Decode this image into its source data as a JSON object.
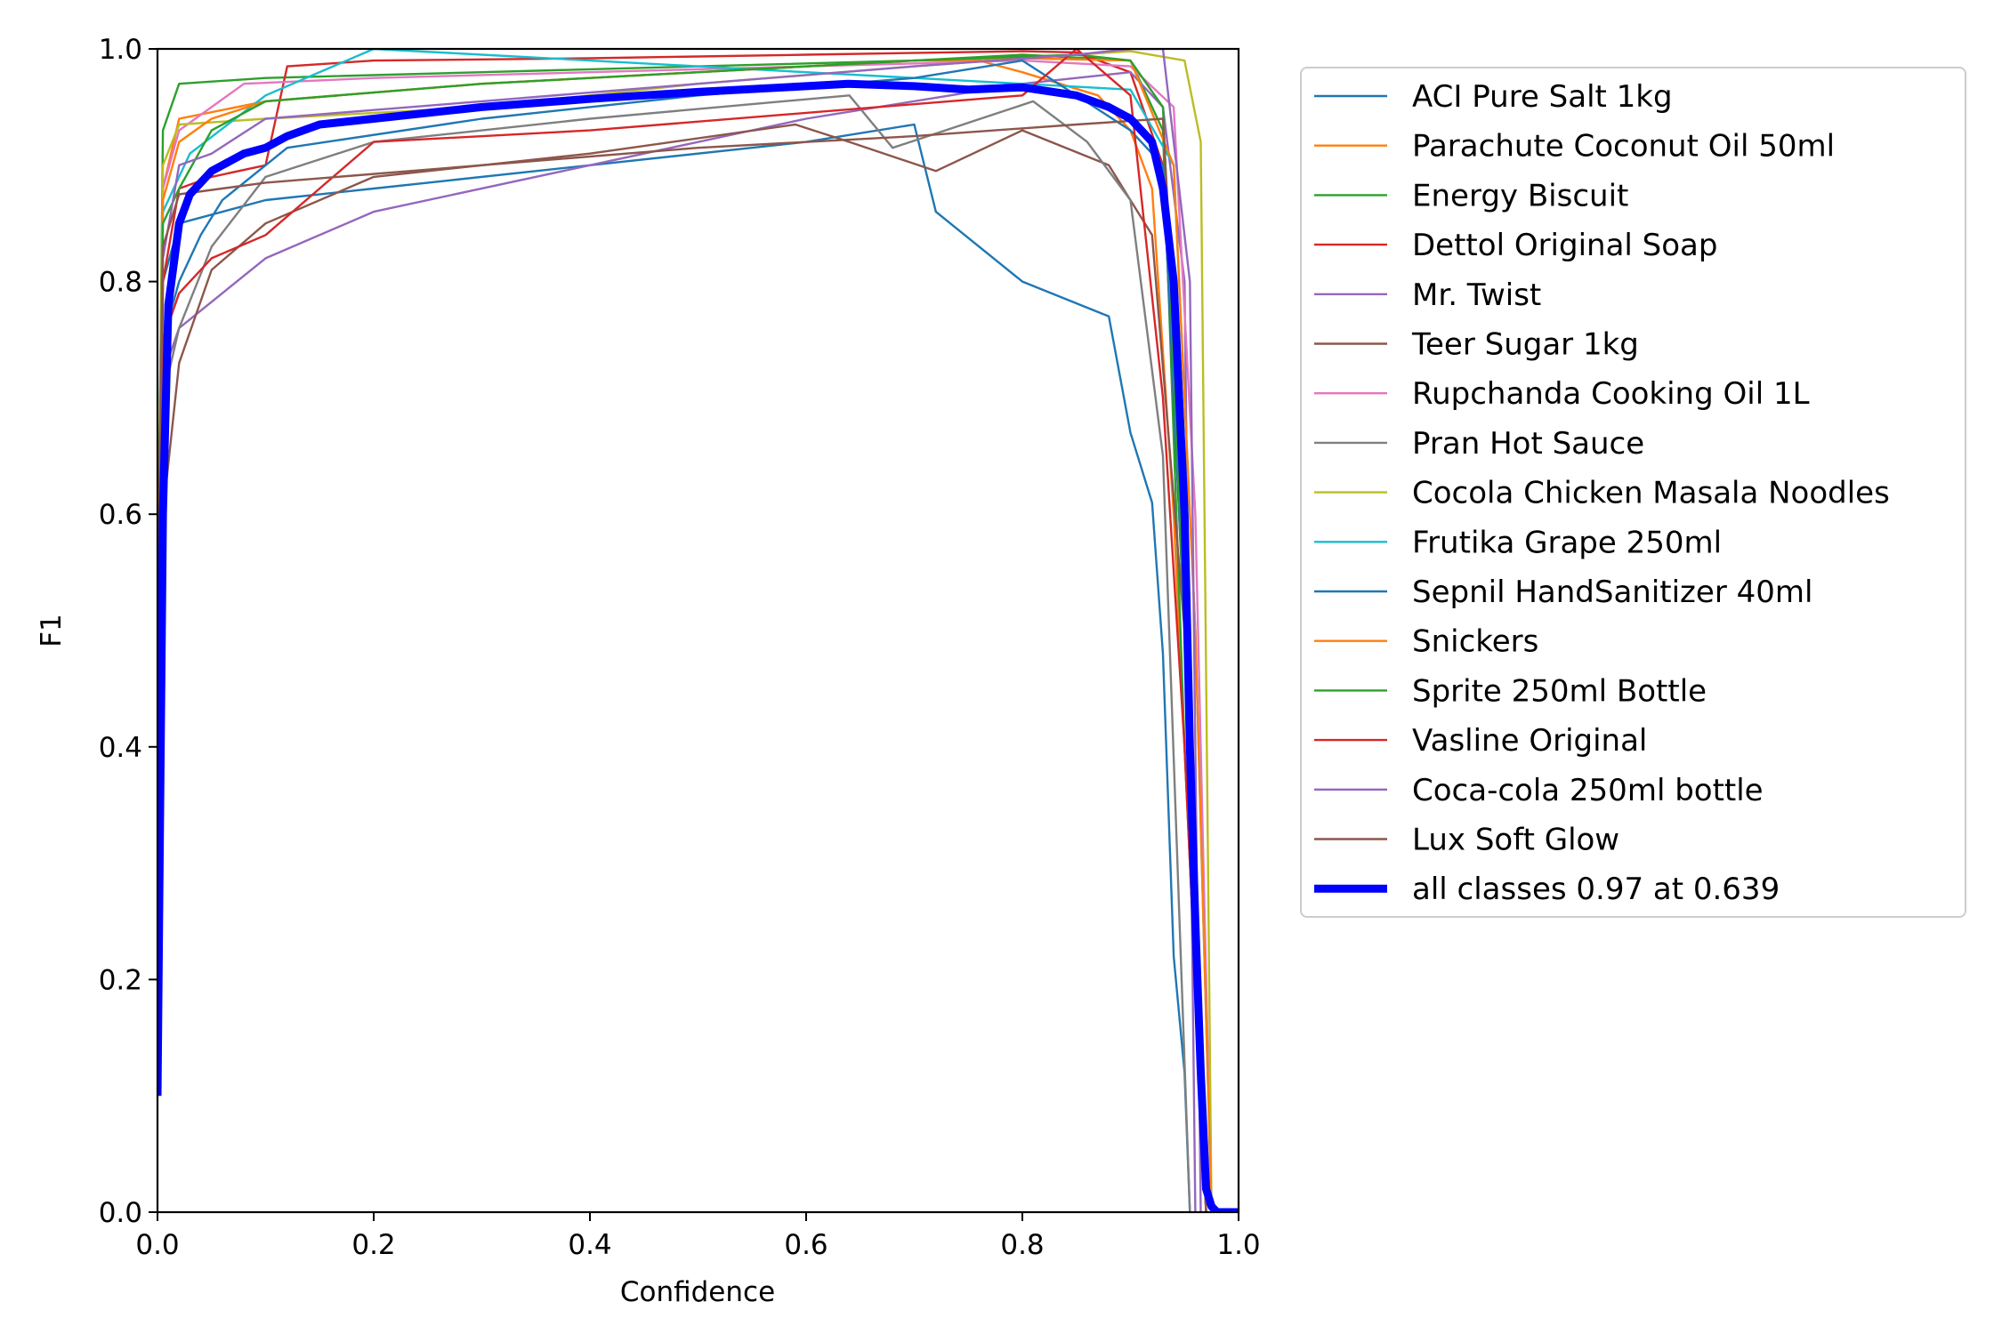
{
  "chart_data": {
    "type": "line",
    "title": "",
    "xlabel": "Confidence",
    "ylabel": "F1",
    "xlim": [
      0,
      1
    ],
    "ylim": [
      0,
      1
    ],
    "x_ticks": [
      "0.0",
      "0.2",
      "0.4",
      "0.6",
      "0.8",
      "1.0"
    ],
    "y_ticks": [
      "0.0",
      "0.2",
      "0.4",
      "0.6",
      "0.8",
      "1.0"
    ],
    "grid": false,
    "legend_position": "outside-right-top",
    "series": [
      {
        "name": "ACI Pure Salt 1kg",
        "color": "#1f77b4",
        "x": [
          0,
          0.005,
          0.02,
          0.1,
          0.2,
          0.4,
          0.6,
          0.7,
          0.72,
          0.8,
          0.88,
          0.9,
          0.92,
          0.93,
          0.94,
          0.95,
          0.955
        ],
        "y": [
          0.3,
          0.8,
          0.85,
          0.87,
          0.88,
          0.9,
          0.92,
          0.935,
          0.86,
          0.8,
          0.77,
          0.67,
          0.61,
          0.48,
          0.22,
          0.12,
          0
        ]
      },
      {
        "name": "Parachute Coconut Oil 50ml",
        "color": "#ff7f0e",
        "x": [
          0,
          0.005,
          0.02,
          0.1,
          0.3,
          0.5,
          0.7,
          0.76,
          0.8,
          0.87,
          0.9,
          0.92,
          0.94,
          0.96,
          0.97
        ],
        "y": [
          0.4,
          0.88,
          0.94,
          0.955,
          0.97,
          0.98,
          0.99,
          0.99,
          0.98,
          0.96,
          0.93,
          0.88,
          0.6,
          0.2,
          0
        ]
      },
      {
        "name": "Energy Biscuit",
        "color": "#2ca02c",
        "x": [
          0,
          0.005,
          0.02,
          0.1,
          0.3,
          0.5,
          0.7,
          0.8,
          0.9,
          0.93,
          0.95,
          0.97
        ],
        "y": [
          0.5,
          0.93,
          0.97,
          0.975,
          0.98,
          0.985,
          0.99,
          0.995,
          0.99,
          0.93,
          0.4,
          0
        ]
      },
      {
        "name": "Dettol Original Soap",
        "color": "#d62728",
        "x": [
          0,
          0.005,
          0.02,
          0.05,
          0.1,
          0.12,
          0.2,
          0.4,
          0.6,
          0.8,
          0.85,
          0.9,
          0.93,
          0.95,
          0.97
        ],
        "y": [
          0.4,
          0.8,
          0.88,
          0.89,
          0.9,
          0.985,
          0.99,
          0.992,
          0.995,
          0.998,
          0.997,
          0.98,
          0.9,
          0.5,
          0
        ]
      },
      {
        "name": "Mr. Twist",
        "color": "#9467bd",
        "x": [
          0,
          0.005,
          0.02,
          0.1,
          0.2,
          0.4,
          0.6,
          0.8,
          0.9,
          0.93,
          0.95,
          0.96
        ],
        "y": [
          0.5,
          0.72,
          0.76,
          0.82,
          0.86,
          0.9,
          0.94,
          0.97,
          0.98,
          0.95,
          0.8,
          0
        ]
      },
      {
        "name": "Teer Sugar 1kg",
        "color": "#8c564b",
        "x": [
          0,
          0.005,
          0.02,
          0.05,
          0.1,
          0.2,
          0.4,
          0.59,
          0.64,
          0.72,
          0.8,
          0.88,
          0.92,
          0.95,
          0.97
        ],
        "y": [
          0.3,
          0.6,
          0.73,
          0.81,
          0.85,
          0.89,
          0.91,
          0.935,
          0.92,
          0.895,
          0.93,
          0.9,
          0.84,
          0.5,
          0
        ]
      },
      {
        "name": "Rupchanda Cooking Oil 1L",
        "color": "#e377c2",
        "x": [
          0,
          0.005,
          0.02,
          0.08,
          0.2,
          0.4,
          0.6,
          0.8,
          0.9,
          0.94,
          0.96,
          0.975
        ],
        "y": [
          0.5,
          0.88,
          0.93,
          0.97,
          0.975,
          0.98,
          0.985,
          0.99,
          0.985,
          0.95,
          0.6,
          0
        ]
      },
      {
        "name": "Pran Hot Sauce",
        "color": "#7f7f7f",
        "x": [
          0,
          0.005,
          0.02,
          0.05,
          0.1,
          0.2,
          0.4,
          0.64,
          0.68,
          0.81,
          0.86,
          0.9,
          0.93,
          0.955
        ],
        "y": [
          0.4,
          0.7,
          0.76,
          0.83,
          0.89,
          0.92,
          0.94,
          0.96,
          0.915,
          0.955,
          0.92,
          0.87,
          0.65,
          0
        ]
      },
      {
        "name": "Cocola Chicken Masala Noodles",
        "color": "#bcbd22",
        "x": [
          0,
          0.005,
          0.02,
          0.1,
          0.3,
          0.5,
          0.7,
          0.85,
          0.9,
          0.95,
          0.965,
          0.975
        ],
        "y": [
          0.5,
          0.9,
          0.935,
          0.94,
          0.95,
          0.97,
          0.985,
          0.995,
          0.998,
          0.99,
          0.92,
          0
        ]
      },
      {
        "name": "Frutika Grape 250ml",
        "color": "#17becf",
        "x": [
          0,
          0.005,
          0.03,
          0.1,
          0.2,
          0.3,
          0.5,
          0.6,
          0.7,
          0.8,
          0.9,
          0.94,
          0.96,
          0.975
        ],
        "y": [
          0.5,
          0.86,
          0.91,
          0.96,
          1.0,
          0.995,
          0.985,
          0.98,
          0.975,
          0.97,
          0.965,
          0.9,
          0.5,
          0
        ]
      },
      {
        "name": "Sepnil HandSanitizer 40ml",
        "color": "#1f77b4",
        "x": [
          0,
          0.005,
          0.02,
          0.04,
          0.06,
          0.1,
          0.12,
          0.3,
          0.5,
          0.7,
          0.8,
          0.85,
          0.9,
          0.93,
          0.95,
          0.97
        ],
        "y": [
          0.4,
          0.75,
          0.8,
          0.84,
          0.87,
          0.9,
          0.915,
          0.94,
          0.96,
          0.975,
          0.99,
          0.96,
          0.93,
          0.9,
          0.5,
          0
        ]
      },
      {
        "name": "Snickers",
        "color": "#ff7f0e",
        "x": [
          0,
          0.005,
          0.02,
          0.05,
          0.1,
          0.3,
          0.5,
          0.7,
          0.8,
          0.9,
          0.94,
          0.96,
          0.975
        ],
        "y": [
          0.5,
          0.87,
          0.92,
          0.94,
          0.955,
          0.97,
          0.98,
          0.99,
          0.992,
          0.99,
          0.9,
          0.5,
          0
        ]
      },
      {
        "name": "Sprite 250ml Bottle",
        "color": "#2ca02c",
        "x": [
          0,
          0.005,
          0.02,
          0.05,
          0.1,
          0.3,
          0.5,
          0.7,
          0.85,
          0.9,
          0.93,
          0.95,
          0.97
        ],
        "y": [
          0.5,
          0.85,
          0.88,
          0.93,
          0.955,
          0.97,
          0.98,
          0.99,
          0.995,
          0.99,
          0.95,
          0.5,
          0
        ]
      },
      {
        "name": "Vasline Original",
        "color": "#d62728",
        "x": [
          0,
          0.005,
          0.02,
          0.05,
          0.1,
          0.2,
          0.4,
          0.6,
          0.8,
          0.85,
          0.9,
          0.93,
          0.95,
          0.97
        ],
        "y": [
          0.4,
          0.75,
          0.79,
          0.82,
          0.84,
          0.92,
          0.93,
          0.945,
          0.96,
          1.0,
          0.96,
          0.7,
          0.4,
          0
        ]
      },
      {
        "name": "Coca-cola 250ml bottle",
        "color": "#9467bd",
        "x": [
          0,
          0.005,
          0.02,
          0.05,
          0.1,
          0.3,
          0.5,
          0.7,
          0.85,
          0.9,
          0.93,
          0.955,
          0.965
        ],
        "y": [
          0.5,
          0.82,
          0.9,
          0.91,
          0.94,
          0.955,
          0.97,
          0.985,
          0.995,
          1.0,
          1.0,
          0.8,
          0
        ]
      },
      {
        "name": "Lux Soft Glow",
        "color": "#8c564b",
        "x": [
          0,
          0.005,
          0.02,
          0.1,
          0.3,
          0.5,
          0.7,
          0.85,
          0.93,
          0.95,
          0.97
        ],
        "y": [
          0.5,
          0.83,
          0.875,
          0.885,
          0.9,
          0.915,
          0.925,
          0.935,
          0.94,
          0.6,
          0
        ]
      },
      {
        "name": "all classes 0.97 at 0.639",
        "color": "#0000ff",
        "bold": true,
        "x": [
          0,
          0.002,
          0.005,
          0.01,
          0.02,
          0.03,
          0.05,
          0.08,
          0.1,
          0.12,
          0.15,
          0.2,
          0.3,
          0.4,
          0.5,
          0.6,
          0.639,
          0.7,
          0.75,
          0.8,
          0.85,
          0.88,
          0.9,
          0.92,
          0.93,
          0.94,
          0.95,
          0.955,
          0.96,
          0.965,
          0.97,
          0.975,
          0.98,
          1.0
        ],
        "y": [
          0.1,
          0.3,
          0.6,
          0.78,
          0.85,
          0.875,
          0.895,
          0.91,
          0.915,
          0.925,
          0.935,
          0.94,
          0.95,
          0.957,
          0.963,
          0.968,
          0.97,
          0.968,
          0.965,
          0.967,
          0.96,
          0.95,
          0.94,
          0.92,
          0.88,
          0.8,
          0.6,
          0.4,
          0.25,
          0.12,
          0.02,
          0.005,
          0,
          0
        ]
      }
    ]
  }
}
